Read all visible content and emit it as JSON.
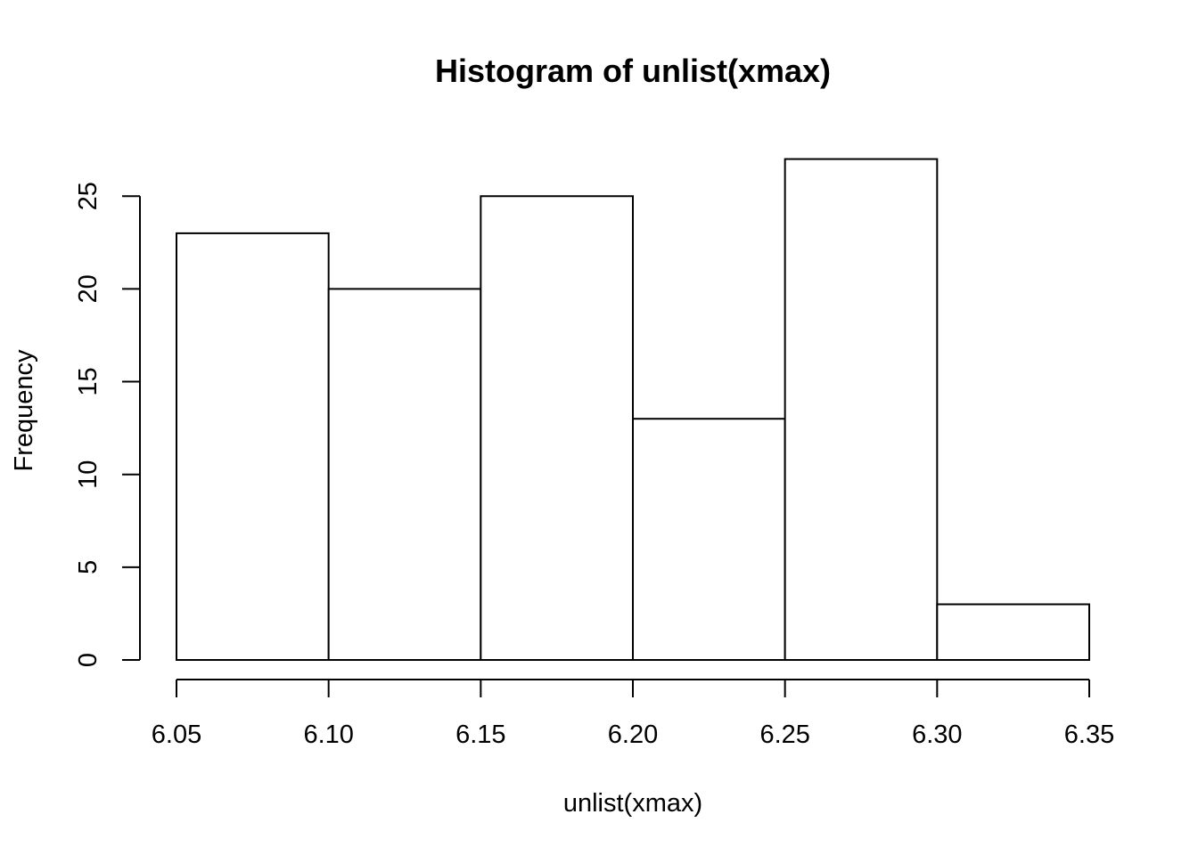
{
  "chart_data": {
    "type": "bar",
    "title": "Histogram of unlist(xmax)",
    "xlabel": "unlist(xmax)",
    "ylabel": "Frequency",
    "bins": [
      {
        "start": 6.05,
        "end": 6.1,
        "count": 23
      },
      {
        "start": 6.1,
        "end": 6.15,
        "count": 20
      },
      {
        "start": 6.15,
        "end": 6.2,
        "count": 25
      },
      {
        "start": 6.2,
        "end": 6.25,
        "count": 13
      },
      {
        "start": 6.25,
        "end": 6.3,
        "count": 27
      },
      {
        "start": 6.3,
        "end": 6.35,
        "count": 3
      }
    ],
    "x_ticks": [
      "6.05",
      "6.10",
      "6.15",
      "6.20",
      "6.25",
      "6.30",
      "6.35"
    ],
    "y_ticks": [
      "0",
      "5",
      "10",
      "15",
      "20",
      "25"
    ],
    "xlim": [
      6.05,
      6.35
    ],
    "ylim": [
      0,
      27
    ],
    "grid": false,
    "legend": "none"
  }
}
